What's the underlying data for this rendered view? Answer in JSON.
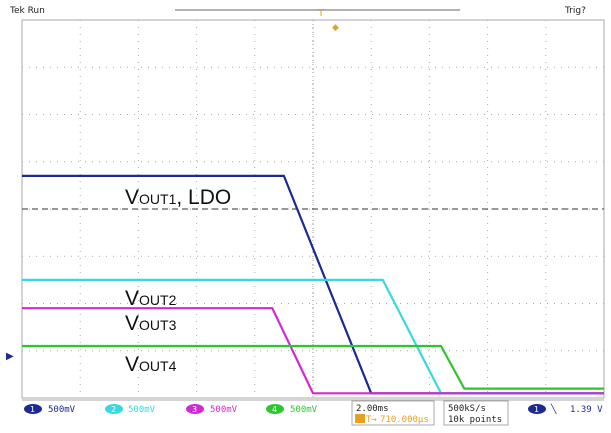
{
  "header": {
    "left": "Tek Run",
    "right": "Trig?",
    "trigger_marker": "T",
    "trigger_level_marker": "◆"
  },
  "chart_data": {
    "type": "line",
    "title": "",
    "xlabel": "",
    "ylabel": "",
    "grid": true,
    "time_unit": "ms",
    "x": [
      0,
      2.3,
      4.5,
      5.5,
      6.8,
      10.0
    ],
    "series": [
      {
        "name": "VOUT1, LDO",
        "color": "#1a2a8f",
        "points": [
          [
            0,
            2.35
          ],
          [
            4.5,
            2.35
          ],
          [
            6.0,
            0.05
          ],
          [
            10.0,
            0.05
          ]
        ]
      },
      {
        "name": "VOUT2",
        "color": "#38d8e0",
        "points": [
          [
            0,
            1.25
          ],
          [
            6.2,
            1.25
          ],
          [
            7.2,
            0.05
          ],
          [
            10.0,
            0.05
          ]
        ]
      },
      {
        "name": "VOUT3",
        "color": "#d02ad0",
        "points": [
          [
            0,
            0.95
          ],
          [
            4.3,
            0.95
          ],
          [
            5.0,
            0.05
          ],
          [
            10.0,
            0.05
          ]
        ]
      },
      {
        "name": "VOUT4",
        "color": "#2ec62e",
        "points": [
          [
            0,
            0.55
          ],
          [
            7.2,
            0.55
          ],
          [
            7.6,
            0.1
          ],
          [
            10.0,
            0.1
          ]
        ]
      }
    ],
    "labels": [
      {
        "series": 0,
        "main": "V",
        "sub": "OUT1",
        "tail": ", LDO"
      },
      {
        "series": 1,
        "main": "V",
        "sub": "OUT2",
        "tail": ""
      },
      {
        "series": 2,
        "main": "V",
        "sub": "OUT3",
        "tail": ""
      },
      {
        "series": 3,
        "main": "V",
        "sub": "OUT4",
        "tail": ""
      }
    ]
  },
  "status_bar": {
    "ch1": {
      "num": "1",
      "scale": "500mV",
      "color": "#1a2a8f"
    },
    "ch2": {
      "num": "2",
      "scale": "500mV",
      "color": "#38d8e0"
    },
    "ch3": {
      "num": "3",
      "scale": "500mV",
      "color": "#d02ad0"
    },
    "ch4": {
      "num": "4",
      "scale": "500mV",
      "color": "#2ec62e"
    },
    "timebase": "2.00ms",
    "delay": "710.000µs",
    "delay_prefix": "T→",
    "sample_rate": "500kS/s",
    "record_length": "10k points",
    "trigger_source": "1",
    "trigger_slope": "╲",
    "trigger_level": "1.39 V"
  },
  "colors": {
    "grid": "#aaaaaa",
    "trigger_line": "#333333",
    "marker": "#e8a020"
  }
}
